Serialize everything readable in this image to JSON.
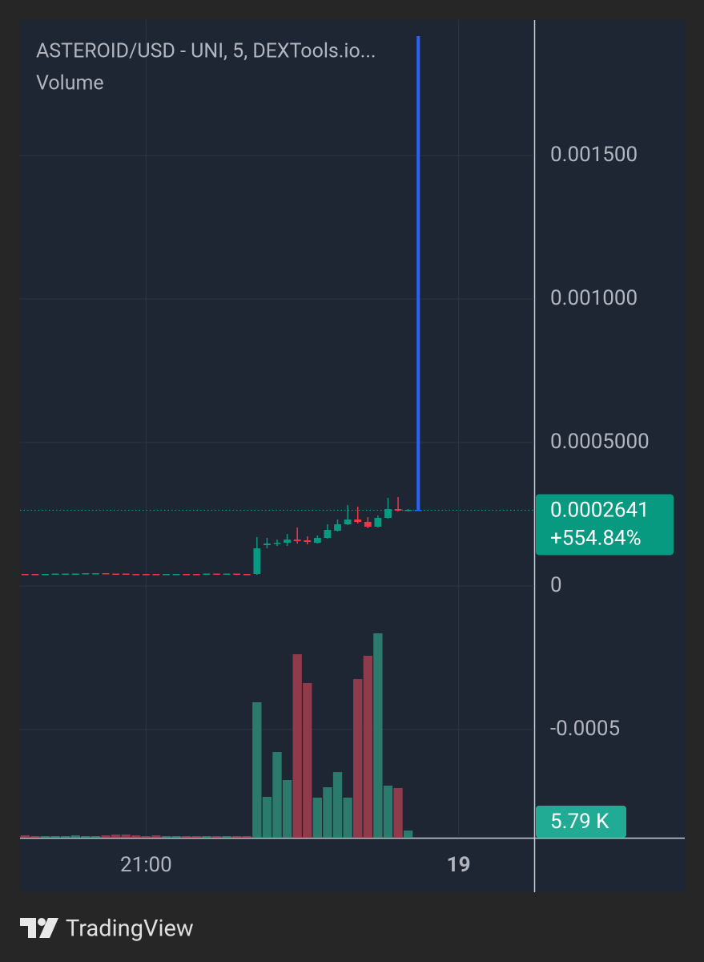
{
  "chart_data": {
    "type": "candlestick",
    "title": "ASTEROID/USD - UNI, 5, DEXTools.io...",
    "subtitle": "Volume",
    "categories": [
      null,
      null,
      null,
      null,
      null,
      null,
      null,
      null,
      null,
      null,
      null,
      null,
      "21:00",
      null,
      null,
      null,
      null,
      null,
      null,
      null,
      null,
      null,
      null,
      null,
      null,
      null,
      null,
      null,
      null,
      null,
      null,
      null,
      null,
      null,
      null,
      null,
      null,
      null,
      null,
      null,
      null,
      null,
      null,
      "19",
      null,
      null,
      null,
      null,
      null,
      null,
      null
    ],
    "open": [
      4.19e-05,
      4.19e-05,
      4.05e-05,
      4.19e-05,
      4.33e-05,
      4.33e-05,
      4.33e-05,
      4.47e-05,
      4.47e-05,
      4.33e-05,
      4.33e-05,
      4.19e-05,
      4.19e-05,
      4.19e-05,
      4.19e-05,
      4.19e-05,
      4.19e-05,
      4.19e-05,
      4.19e-05,
      4.33e-05,
      4.19e-05,
      4.33e-05,
      4.19e-05,
      4.19e-05,
      0.0001425,
      0.000148,
      0.0001508,
      0.000162,
      0.0001592,
      0.0001508,
      0.0001676,
      0.0001927,
      0.0002151,
      0.0002318,
      0.0002235,
      0.0002067,
      0.0002374,
      0.0002682,
      0.0002626,
      0.0002654,
      null,
      null,
      null,
      null,
      null,
      null,
      null,
      null,
      null,
      null,
      null
    ],
    "high": [
      4.19e-05,
      4.19e-05,
      4.19e-05,
      4.33e-05,
      4.33e-05,
      4.33e-05,
      4.47e-05,
      4.47e-05,
      4.47e-05,
      4.33e-05,
      4.33e-05,
      4.19e-05,
      4.19e-05,
      4.19e-05,
      4.19e-05,
      4.19e-05,
      4.19e-05,
      4.19e-05,
      4.33e-05,
      4.33e-05,
      4.33e-05,
      4.33e-05,
      4.19e-05,
      0.0001704,
      0.0001676,
      0.000162,
      0.0001816,
      0.0002039,
      0.0001732,
      0.000176,
      0.0002151,
      0.0002318,
      0.0002821,
      0.0002765,
      0.0002402,
      0.0002458,
      0.0003073,
      0.0003101,
      0.0002682,
      0.0019162,
      null,
      null,
      null,
      null,
      null,
      null,
      null,
      null,
      null,
      null,
      null
    ],
    "low": [
      4.19e-05,
      4.05e-05,
      4.05e-05,
      4.19e-05,
      4.33e-05,
      4.33e-05,
      4.33e-05,
      4.47e-05,
      4.33e-05,
      4.33e-05,
      4.19e-05,
      4.19e-05,
      4.19e-05,
      4.19e-05,
      4.19e-05,
      4.19e-05,
      4.19e-05,
      4.19e-05,
      4.19e-05,
      4.19e-05,
      4.19e-05,
      4.19e-05,
      4.19e-05,
      3.91e-05,
      0.0001313,
      0.0001397,
      0.0001397,
      0.000148,
      0.0001452,
      0.000148,
      0.0001648,
      0.0001899,
      0.0002123,
      0.0002179,
      0.0002011,
      0.0002039,
      0.0002346,
      0.0002598,
      0.0002598,
      0.0002626,
      null,
      null,
      null,
      null,
      null,
      null,
      null,
      null,
      null,
      null,
      null
    ],
    "close": [
      4.19e-05,
      4.05e-05,
      4.19e-05,
      4.33e-05,
      4.33e-05,
      4.33e-05,
      4.47e-05,
      4.47e-05,
      4.33e-05,
      4.33e-05,
      4.19e-05,
      4.19e-05,
      4.19e-05,
      4.19e-05,
      4.19e-05,
      4.19e-05,
      4.19e-05,
      4.19e-05,
      4.33e-05,
      4.19e-05,
      4.33e-05,
      4.19e-05,
      4.19e-05,
      0.0001313,
      0.000148,
      0.0001508,
      0.000162,
      0.0001564,
      0.0001536,
      0.0001676,
      0.0001955,
      0.0002151,
      0.0002318,
      0.0002235,
      0.0002067,
      0.0002374,
      0.0002682,
      0.0002626,
      0.0002654,
      0.0002641,
      null,
      null,
      null,
      null,
      null,
      null,
      null,
      null,
      null,
      null,
      null
    ],
    "colors": [
      "#f23645",
      "#f23645",
      "#089981",
      "#089981",
      "#089981",
      "#089981",
      "#089981",
      "#089981",
      "#f23645",
      "#f23645",
      "#f23645",
      "#f23645",
      "#f23645",
      "#f23645",
      "#089981",
      "#089981",
      "#f23645",
      "#f23645",
      "#089981",
      "#f23645",
      "#089981",
      "#f23645",
      "#f23645",
      "#089981",
      "#089981",
      "#089981",
      "#089981",
      "#f23645",
      "#f23645",
      "#089981",
      "#089981",
      "#089981",
      "#089981",
      "#f23645",
      "#f23645",
      "#089981",
      "#089981",
      "#f23645",
      "#089981",
      "#2962ff",
      null,
      null,
      null,
      null,
      null,
      null,
      null,
      null,
      null,
      null,
      null
    ],
    "up_color": "#089981",
    "volume": {
      "values": [
        1900,
        1300,
        1300,
        1300,
        1300,
        1900,
        1300,
        1300,
        1900,
        2600,
        2600,
        1900,
        1300,
        1900,
        1300,
        1300,
        1300,
        1300,
        1300,
        1300,
        1300,
        1300,
        1300,
        108700,
        32800,
        68800,
        46300,
        147200,
        124100,
        32200,
        40500,
        52700,
        32200,
        127300,
        146000,
        164000,
        41800,
        39900,
        5790,
        null,
        null,
        null,
        null,
        null,
        null,
        null,
        null,
        null,
        null,
        null,
        null
      ],
      "value_labels": [
        null,
        null,
        null,
        null,
        null,
        null,
        null,
        null,
        null,
        null,
        null,
        null,
        null,
        null,
        null,
        null,
        null,
        null,
        null,
        null,
        null,
        null,
        null,
        null,
        null,
        null,
        null,
        null,
        null,
        null,
        null,
        null,
        null,
        null,
        null,
        null,
        null,
        null,
        "5.79 K",
        null,
        null,
        null,
        null,
        null,
        null,
        null,
        null,
        null,
        null,
        null,
        null
      ],
      "up_color": "#2b7a6b",
      "down_color": "#8f3b4b",
      "label_color": "#22ab94"
    },
    "ylim": [
      -0.000877,
      0.001972
    ],
    "yticks": [
      {
        "value": -0.0005,
        "label": "-0.0005"
      },
      0,
      {
        "value": 0.0005,
        "label": "0.0005000"
      },
      {
        "value": 0.001,
        "label": "0.001000"
      },
      {
        "value": 0.0015,
        "label": "0.001500"
      }
    ],
    "grid": true,
    "last_price": 0.0002641,
    "change": "+554.84%",
    "last_price_color": "#089981",
    "footer": "TradingView"
  }
}
